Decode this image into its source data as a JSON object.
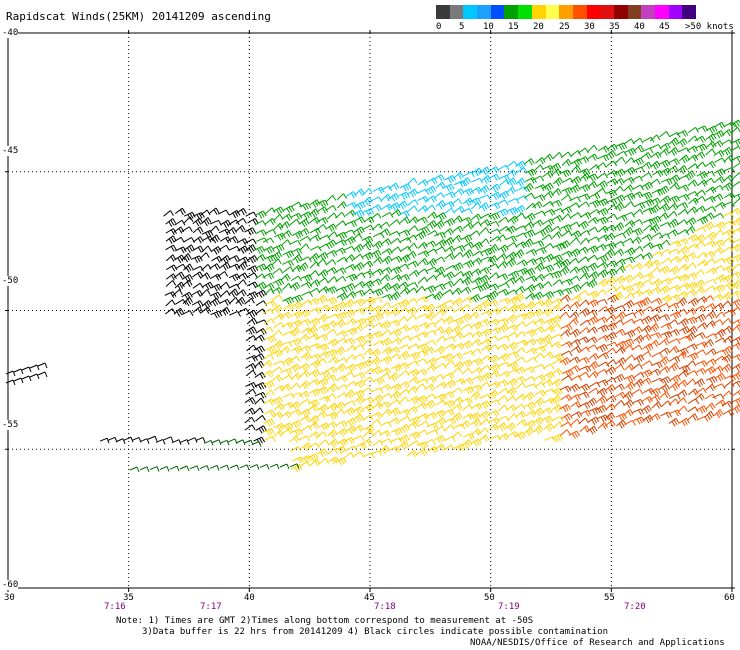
{
  "title": "Rapidscat Winds(25KM) 20141209 ascending",
  "legend": {
    "labels": [
      "0",
      "5",
      "10",
      "15",
      "20",
      "25",
      "30",
      "35",
      "40",
      "45",
      ">50 knots"
    ],
    "colors": [
      "#3a3a3a",
      "#7a7a7a",
      "#00c8ff",
      "#1ea0ff",
      "#0050ff",
      "#00a000",
      "#00e000",
      "#ffd400",
      "#ffff50",
      "#ffa000",
      "#ff5000",
      "#ff0000",
      "#e01010",
      "#900000",
      "#804020",
      "#c040c0",
      "#ff00ff",
      "#a000ff",
      "#400080"
    ]
  },
  "axes": {
    "lat_labels": [
      "-40",
      "-45",
      "-50",
      "-55",
      "-60"
    ],
    "lon_labels": [
      "30",
      "35",
      "40",
      "45",
      "50",
      "55",
      "60"
    ],
    "time_labels": [
      "7:16",
      "7:17",
      "7:18",
      "7:19",
      "7:20"
    ]
  },
  "notes": {
    "line1": "Note: 1) Times are GMT 2)Times along bottom correspond to measurement at -50S",
    "line2": "3)Data buffer is 22 hrs from 20141209 4) Black circles indicate possible contamination",
    "line3": "NOAA/NESDIS/Office of Research and Applications"
  }
}
